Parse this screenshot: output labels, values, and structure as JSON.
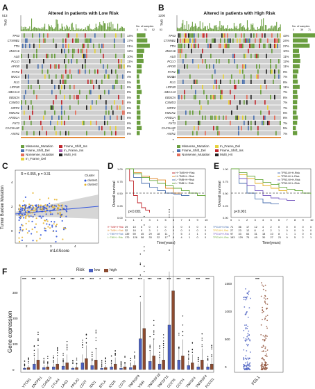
{
  "panels": {
    "A": {
      "label": "A",
      "title": "Altered in patients with Low Risk",
      "tmb_max": "513",
      "tmb_axis_label": "TMB",
      "genes": [
        "TP53",
        "CTNNB1",
        "TTN",
        "MUC16",
        "ALB",
        "PCLO",
        "APOB",
        "RYR2",
        "MUC4",
        "FLG",
        "LRP1B",
        "ABCA13",
        "OBSCN",
        "CSMD3",
        "XIRP2",
        "HMCN1",
        "ARID1A",
        "FAT3",
        "CACNA1E",
        "AXIN1"
      ],
      "pcts": [
        "14%",
        "17%",
        "21%",
        "12%",
        "10%",
        "11%",
        "8%",
        "8%",
        "4%",
        "5%",
        "6%",
        "8%",
        "5%",
        "6%",
        "5%",
        "6%",
        "6%",
        "6%",
        "8%",
        "5%"
      ],
      "top_ticks": [
        "0",
        "51",
        "52",
        "53"
      ],
      "samples_label": "No. of samples"
    },
    "B": {
      "label": "B",
      "title": "Altered in patients with High Risk",
      "tmb_max": "1200",
      "tmb_axis_label": "TMB",
      "genes": [
        "TP53",
        "CTNNB1",
        "TTN",
        "MUC16",
        "ALB",
        "PCLO",
        "APOB",
        "RYR2",
        "MUC4",
        "FLG",
        "LRP1B",
        "ABCA13",
        "OBSCN",
        "CSMD3",
        "XIRP2",
        "HMCN1",
        "ARID1A",
        "FAT3",
        "CACNA1E",
        "AXIN1"
      ],
      "pcts": [
        "43%",
        "24%",
        "27%",
        "10%",
        "11%",
        "12%",
        "11%",
        "9%",
        "7%",
        "8%",
        "11%",
        "7%",
        "8%",
        "7%",
        "7%",
        "6%",
        "8%",
        "7%",
        "5%",
        "7%"
      ],
      "top_ticks": [
        "0",
        "39",
        "71"
      ],
      "samples_label": "No. of samples"
    },
    "C": {
      "label": "C",
      "r_text": "R = 0.055, p = 0.31",
      "xlabel": "m1AScore",
      "ylabel": "Tumor Burden Mutation",
      "legend_title": "Cluster",
      "legend": [
        "cluster1",
        "cluster2"
      ],
      "yticks": [
        "4",
        "2",
        "0"
      ],
      "xticks": [
        "2",
        "3",
        "4"
      ]
    },
    "D": {
      "label": "D",
      "ylabel": "Overall survival",
      "xlabel": "Time(years)",
      "pval": "p<0.001",
      "legend": [
        "H−TMB+H−Risk",
        "H−TMB+L−Risk",
        "L−TMB+H−Risk",
        "L−TMB+L−Risk"
      ],
      "yticks": [
        "1.00",
        "0.75",
        "0.50",
        "0.25",
        "0.00"
      ],
      "xticks": [
        "0",
        "1",
        "2",
        "3",
        "4",
        "5",
        "6",
        "7",
        "8",
        "9",
        "10"
      ],
      "risk_rows": [
        [
          "29",
          "10",
          "5",
          "0",
          "0",
          "0",
          "0",
          "0",
          "0",
          "0",
          "0"
        ],
        [
          "32",
          "16",
          "9",
          "3",
          "1",
          "0",
          "0",
          "0",
          "0",
          "0",
          "0"
        ],
        [
          "139",
          "59",
          "45",
          "29",
          "18",
          "11",
          "7",
          "5",
          "2",
          "1",
          "0"
        ],
        [
          "170",
          "126",
          "58",
          "33",
          "22",
          "17",
          "8",
          "4",
          "1",
          "0",
          "0"
        ]
      ],
      "risk_labels": [
        "H−TMB+H−Risk",
        "H−TMB+L−Risk",
        "L−TMB+H−Risk",
        "L−TMB+L−Risk"
      ]
    },
    "E": {
      "label": "E",
      "ylabel": "Overall survival",
      "xlabel": "Time(years)",
      "pval": "p<0.001",
      "legend": [
        "TP53-M+H-Risk",
        "TP53-M+L-Risk",
        "TP53-W+H-Risk",
        "TP53-W+L-Risk"
      ],
      "yticks": [
        "1.00",
        "0.75",
        "0.50",
        "0.25",
        "0.00"
      ],
      "xticks": [
        "0",
        "1",
        "2",
        "3",
        "4",
        "5",
        "6",
        "7",
        "8",
        "9",
        "10"
      ],
      "risk_rows": [
        [
          "71",
          "36",
          "17",
          "12",
          "4",
          "2",
          "0",
          "0",
          "0",
          "0",
          "0"
        ],
        [
          "27",
          "23",
          "12",
          "8",
          "4",
          "2",
          "1",
          "0",
          "0",
          "0",
          "0"
        ],
        [
          "97",
          "33",
          "64",
          "31",
          "18",
          "10",
          "8",
          "1",
          "1",
          "0",
          "0"
        ],
        [
          "183",
          "129",
          "75",
          "49",
          "30",
          "27",
          "21",
          "9",
          "5",
          "2",
          "1"
        ]
      ],
      "risk_labels": [
        "TP53-M+H-Risk",
        "TP53-M+L-Risk",
        "TP53-W+H-Risk",
        "TP53-W+L-Risk"
      ]
    },
    "F": {
      "label": "F",
      "ylabel": "Gene expression",
      "legend_title": "Risk",
      "legend": [
        "low",
        "high"
      ],
      "yticks": [
        "300",
        "200",
        "100",
        "0"
      ],
      "genes": [
        "VTCN1",
        "ENTPD1",
        "CD40LG",
        "CTLA4",
        "LAG3",
        "HHLA2",
        "CD27",
        "IDO1",
        "BTLA",
        "ICOS",
        "CD70",
        "TNFRSF9",
        "VSIR",
        "TNFRSF18",
        "TNFSF15",
        "CD276",
        "CD274",
        "TNFSF4",
        "TNFRSF4",
        "PDCD1"
      ],
      "stars": [
        "***",
        "***",
        "*",
        "***",
        "*",
        "***",
        "***",
        "***",
        "*",
        "***",
        "***",
        "***",
        "***",
        "***",
        "***",
        "***",
        "***",
        "***",
        "***",
        "***"
      ],
      "fgl1_label": "FGL1",
      "fgl1_yticks": [
        "1500",
        "1000",
        "500",
        "0"
      ],
      "fgl1_star": "***"
    }
  },
  "legend_A": [
    "Missense_Mutation",
    "Frame_Shift_Ins",
    "Frame_Shift_Del",
    "In_Frame_Ins",
    "Nonsense_Mutation",
    "Multi_Hit",
    "In_Frame_Del"
  ],
  "legend_B": [
    "Missense_Mutation",
    "In_Frame_Del",
    "Frame_Shift_Del",
    "Frame_Shift_Ins",
    "Nonsense_Mutation",
    "Multi_Hit"
  ],
  "colors": {
    "missense": "#6a9e3f",
    "frameshift_del": "#4c72b0",
    "frameshift_ins": "#c1272d",
    "nonsense": "#e46f5b",
    "inframe_del": "#e6d23b",
    "inframe_ins": "#b15fb5",
    "multi": "#222222",
    "bg": "#cfcfcf",
    "low": "#4a5fc1",
    "high": "#8b4a2f"
  },
  "chart_data": [
    {
      "type": "scatter",
      "panel": "C",
      "title": "",
      "xlabel": "m1AScore",
      "ylabel": "Tumor Burden Mutation",
      "series": [
        {
          "name": "cluster1"
        },
        {
          "name": "cluster2"
        }
      ]
    },
    {
      "type": "line",
      "panel": "D",
      "title": "",
      "xlabel": "Time(years)",
      "ylabel": "Overall survival",
      "ylim": [
        0,
        1
      ],
      "xlim": [
        0,
        10
      ],
      "series": [
        {
          "name": "H−TMB+H−Risk",
          "x": [
            0,
            0.5,
            1,
            1.5,
            2,
            2.5,
            3
          ],
          "y": [
            1,
            0.75,
            0.45,
            0.3,
            0.2,
            0.15,
            0.1
          ]
        },
        {
          "name": "H−TMB+L−Risk",
          "x": [
            0,
            1,
            2,
            3,
            4,
            5,
            6,
            7
          ],
          "y": [
            1,
            0.92,
            0.85,
            0.8,
            0.77,
            0.6,
            0.5,
            0.5
          ]
        },
        {
          "name": "L−TMB+H−Risk",
          "x": [
            0,
            1,
            2,
            3,
            4,
            5,
            6,
            7,
            8
          ],
          "y": [
            1,
            0.82,
            0.7,
            0.62,
            0.55,
            0.5,
            0.48,
            0.45,
            0.45
          ]
        },
        {
          "name": "L−TMB+L−Risk",
          "x": [
            0,
            1,
            2,
            3,
            4,
            5,
            6,
            7,
            8,
            9,
            10
          ],
          "y": [
            1,
            0.9,
            0.82,
            0.76,
            0.7,
            0.65,
            0.6,
            0.55,
            0.5,
            0.45,
            0.42
          ]
        }
      ]
    },
    {
      "type": "line",
      "panel": "E",
      "title": "",
      "xlabel": "Time(years)",
      "ylabel": "Overall survival",
      "ylim": [
        0,
        1
      ],
      "xlim": [
        0,
        10
      ],
      "series": [
        {
          "name": "TP53-M+H-Risk",
          "x": [
            0,
            1,
            2,
            3,
            4,
            5,
            6
          ],
          "y": [
            1,
            0.7,
            0.5,
            0.38,
            0.3,
            0.28,
            0.28
          ]
        },
        {
          "name": "TP53-M+L-Risk",
          "x": [
            0,
            1,
            2,
            3,
            4,
            5,
            6,
            7
          ],
          "y": [
            1,
            0.88,
            0.8,
            0.7,
            0.65,
            0.6,
            0.55,
            0.5
          ]
        },
        {
          "name": "TP53-W+H-Risk",
          "x": [
            0,
            1,
            2,
            3,
            4,
            5,
            6,
            7,
            8
          ],
          "y": [
            1,
            0.8,
            0.65,
            0.55,
            0.45,
            0.4,
            0.38,
            0.35,
            0.35
          ]
        },
        {
          "name": "TP53-W+L-Risk",
          "x": [
            0,
            1,
            2,
            3,
            4,
            5,
            6,
            7,
            8,
            9,
            10
          ],
          "y": [
            1,
            0.92,
            0.85,
            0.78,
            0.72,
            0.68,
            0.62,
            0.58,
            0.55,
            0.5,
            0.48
          ]
        }
      ]
    },
    {
      "type": "bar",
      "panel": "F",
      "title": "",
      "ylabel": "Gene expression",
      "categories": [
        "VTCN1",
        "ENTPD1",
        "CD40LG",
        "CTLA4",
        "LAG3",
        "HHLA2",
        "CD27",
        "IDO1",
        "BTLA",
        "ICOS",
        "CD70",
        "TNFRSF9",
        "VSIR",
        "TNFRSF18",
        "TNFSF15",
        "CD276",
        "CD274",
        "TNFSF4",
        "TNFRSF4",
        "PDCD1"
      ],
      "series": [
        {
          "name": "low",
          "values": [
            2,
            8,
            3,
            4,
            5,
            2,
            10,
            6,
            2,
            4,
            2,
            3,
            45,
            12,
            8,
            65,
            14,
            6,
            4,
            4
          ]
        },
        {
          "name": "high",
          "values": [
            3,
            14,
            4,
            8,
            10,
            3,
            16,
            14,
            3,
            8,
            4,
            6,
            60,
            20,
            14,
            115,
            20,
            10,
            14,
            8
          ]
        }
      ]
    }
  ]
}
